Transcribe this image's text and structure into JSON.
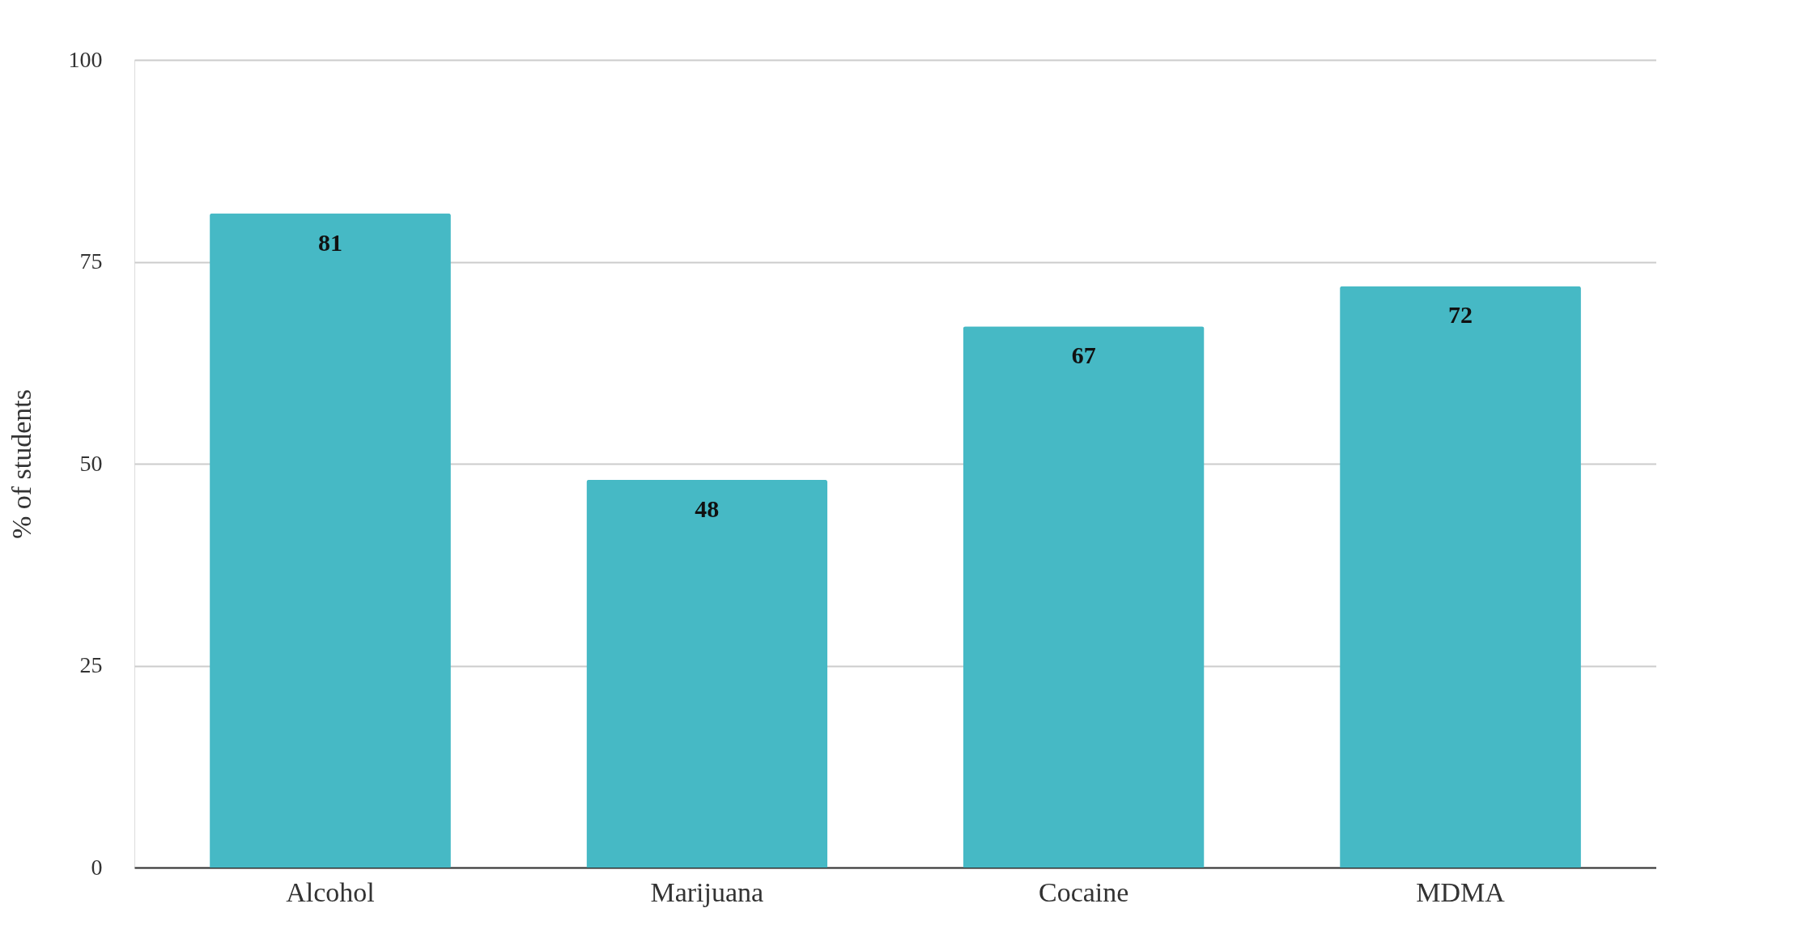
{
  "chart_data": {
    "type": "bar",
    "ylabel": "% of students",
    "categories": [
      "Alcohol",
      "Marijuana",
      "Cocaine",
      "MDMA"
    ],
    "values": [
      81,
      48,
      67,
      72
    ],
    "color": "#46b9c5",
    "ylim": [
      0,
      100
    ],
    "yticks": [
      0,
      25,
      50,
      75,
      100
    ],
    "grid": "y",
    "data_labels": true
  }
}
